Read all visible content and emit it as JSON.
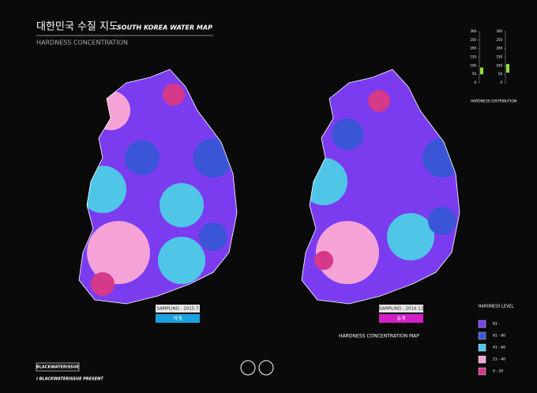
{
  "header": {
    "title": "대한민국 수질 지도",
    "subtitle": "SOUTH KOREA WATER MAP",
    "caption": "HARDNESS CONCENTRATION"
  },
  "maps": [
    {
      "sampling": "SAMPLING : 2015.7",
      "season": "하계",
      "color": "#1aa3e0"
    },
    {
      "sampling": "SAMPLING : 2016.12",
      "season": "동계",
      "color": "#d21fc8"
    }
  ],
  "distribution": {
    "title": "HARDNESS DISTRIBUTION",
    "ylim": [
      0,
      300
    ],
    "ticks": [
      0,
      50,
      100,
      150,
      200,
      250,
      300
    ],
    "ranges": [
      [
        50,
        90
      ],
      [
        60,
        110
      ]
    ],
    "color": "#8fe03a"
  },
  "legend": {
    "title": "HARDNESS LEVEL",
    "items": [
      {
        "label": "81 -",
        "color": "#7b3cf0"
      },
      {
        "label": "61 - 80",
        "color": "#3a55d6"
      },
      {
        "label": "41 - 60",
        "color": "#4fc6e8"
      },
      {
        "label": "21 - 40",
        "color": "#f5a3d6"
      },
      {
        "label": "0 - 20",
        "color": "#d6388a"
      }
    ]
  },
  "footer": {
    "map_title": "HARDNESS CONCENTRATION MAP",
    "brand": "BLACKWATERISSUE",
    "presents": "I BLACKWATERISSUE PRESENT"
  }
}
